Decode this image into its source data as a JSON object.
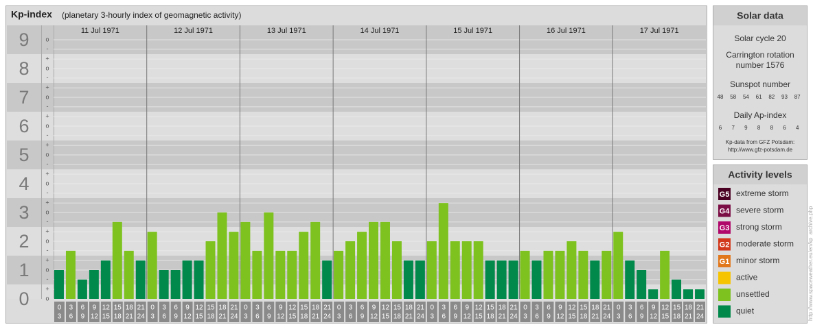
{
  "chart_data": {
    "type": "bar",
    "title": "Kp-index",
    "subtitle": "(planetary 3-hourly index of geomagnetic activity)",
    "ylim": [
      0,
      9.5
    ],
    "yticks": [
      0,
      1,
      2,
      3,
      4,
      5,
      6,
      7,
      8,
      9
    ],
    "minor_ticks": [
      {
        "value": 9,
        "label": "o"
      },
      {
        "value": 8.67,
        "label": "-"
      },
      {
        "value": 8.33,
        "label": "+"
      },
      {
        "value": 8,
        "label": "o"
      },
      {
        "value": 7.67,
        "label": "-"
      },
      {
        "value": 7.33,
        "label": "+"
      },
      {
        "value": 7,
        "label": "o"
      },
      {
        "value": 6.67,
        "label": "-"
      },
      {
        "value": 6.33,
        "label": "+"
      },
      {
        "value": 6,
        "label": "o"
      },
      {
        "value": 5.67,
        "label": "-"
      },
      {
        "value": 5.33,
        "label": "+"
      },
      {
        "value": 5,
        "label": "o"
      },
      {
        "value": 4.67,
        "label": "-"
      },
      {
        "value": 4.33,
        "label": "+"
      },
      {
        "value": 4,
        "label": "o"
      },
      {
        "value": 3.67,
        "label": "-"
      },
      {
        "value": 3.33,
        "label": "+"
      },
      {
        "value": 3,
        "label": "o"
      },
      {
        "value": 2.67,
        "label": "-"
      },
      {
        "value": 2.33,
        "label": "+"
      },
      {
        "value": 2,
        "label": "o"
      },
      {
        "value": 1.67,
        "label": "-"
      },
      {
        "value": 1.33,
        "label": "+"
      },
      {
        "value": 1,
        "label": "o"
      },
      {
        "value": 0.67,
        "label": "-"
      },
      {
        "value": 0.33,
        "label": "+"
      },
      {
        "value": 0,
        "label": "o"
      }
    ],
    "days": [
      "11 Jul 1971",
      "12 Jul 1971",
      "13 Jul 1971",
      "14 Jul 1971",
      "15 Jul 1971",
      "16 Jul 1971",
      "17 Jul 1971"
    ],
    "time_slots": [
      {
        "from": 0,
        "to": 3
      },
      {
        "from": 3,
        "to": 6
      },
      {
        "from": 6,
        "to": 9
      },
      {
        "from": 9,
        "to": 12
      },
      {
        "from": 12,
        "to": 15
      },
      {
        "from": 15,
        "to": 18
      },
      {
        "from": 18,
        "to": 21
      },
      {
        "from": 21,
        "to": 24
      }
    ],
    "values": [
      1,
      1.67,
      0.67,
      1,
      1.33,
      2.67,
      1.67,
      1.33,
      2.33,
      1,
      1,
      1.33,
      1.33,
      2,
      3,
      2.33,
      2.67,
      1.67,
      3,
      1.67,
      1.67,
      2.33,
      2.67,
      1.33,
      1.67,
      2,
      2.33,
      2.67,
      2.67,
      2,
      1.33,
      1.33,
      2,
      3.33,
      2,
      2,
      2,
      1.33,
      1.33,
      1.33,
      1.67,
      1.33,
      1.67,
      1.67,
      2,
      1.67,
      1.33,
      1.67,
      2.33,
      1.33,
      1,
      0.33,
      1.67,
      0.67,
      0.33,
      0.33
    ],
    "colors": [
      "#00894a",
      "#7dc21e",
      "#00894a",
      "#00894a",
      "#00894a",
      "#7dc21e",
      "#7dc21e",
      "#00894a",
      "#7dc21e",
      "#00894a",
      "#00894a",
      "#00894a",
      "#00894a",
      "#7dc21e",
      "#7dc21e",
      "#7dc21e",
      "#7dc21e",
      "#7dc21e",
      "#7dc21e",
      "#7dc21e",
      "#7dc21e",
      "#7dc21e",
      "#7dc21e",
      "#00894a",
      "#7dc21e",
      "#7dc21e",
      "#7dc21e",
      "#7dc21e",
      "#7dc21e",
      "#7dc21e",
      "#00894a",
      "#00894a",
      "#7dc21e",
      "#7dc21e",
      "#7dc21e",
      "#7dc21e",
      "#7dc21e",
      "#00894a",
      "#00894a",
      "#00894a",
      "#7dc21e",
      "#00894a",
      "#7dc21e",
      "#7dc21e",
      "#7dc21e",
      "#7dc21e",
      "#00894a",
      "#7dc21e",
      "#7dc21e",
      "#00894a",
      "#00894a",
      "#00894a",
      "#7dc21e",
      "#00894a",
      "#00894a",
      "#00894a"
    ],
    "solar_data": {
      "title": "Solar data",
      "cycle": "Solar cycle 20",
      "carrington": [
        "Carrington rotation",
        "number 1576"
      ],
      "sunspot_title": "Sunspot number",
      "sunspot": [
        48,
        58,
        54,
        61,
        82,
        93,
        87
      ],
      "ap_title": "Daily Ap-index",
      "ap": [
        6,
        7,
        9,
        8,
        8,
        6,
        4
      ],
      "source": [
        "Kp-data from GFZ Potsdam:",
        "http://www.gfz-potsdam.de"
      ]
    },
    "legend": {
      "title": "Activity levels",
      "items": [
        {
          "code": "G5",
          "name": "extreme storm",
          "color": "#4a0022"
        },
        {
          "code": "G4",
          "name": "severe storm",
          "color": "#7a0e45"
        },
        {
          "code": "G3",
          "name": "strong storm",
          "color": "#b0076a"
        },
        {
          "code": "G2",
          "name": "moderate storm",
          "color": "#d2391c"
        },
        {
          "code": "G1",
          "name": "minor storm",
          "color": "#e2781c"
        },
        {
          "name": "active",
          "color": "#f6c400"
        },
        {
          "name": "unsettled",
          "color": "#7dc21e"
        },
        {
          "name": "quiet",
          "color": "#00894a"
        }
      ]
    },
    "watermark": "http://www.spaceweather.eu/en/kp_archive.php"
  }
}
